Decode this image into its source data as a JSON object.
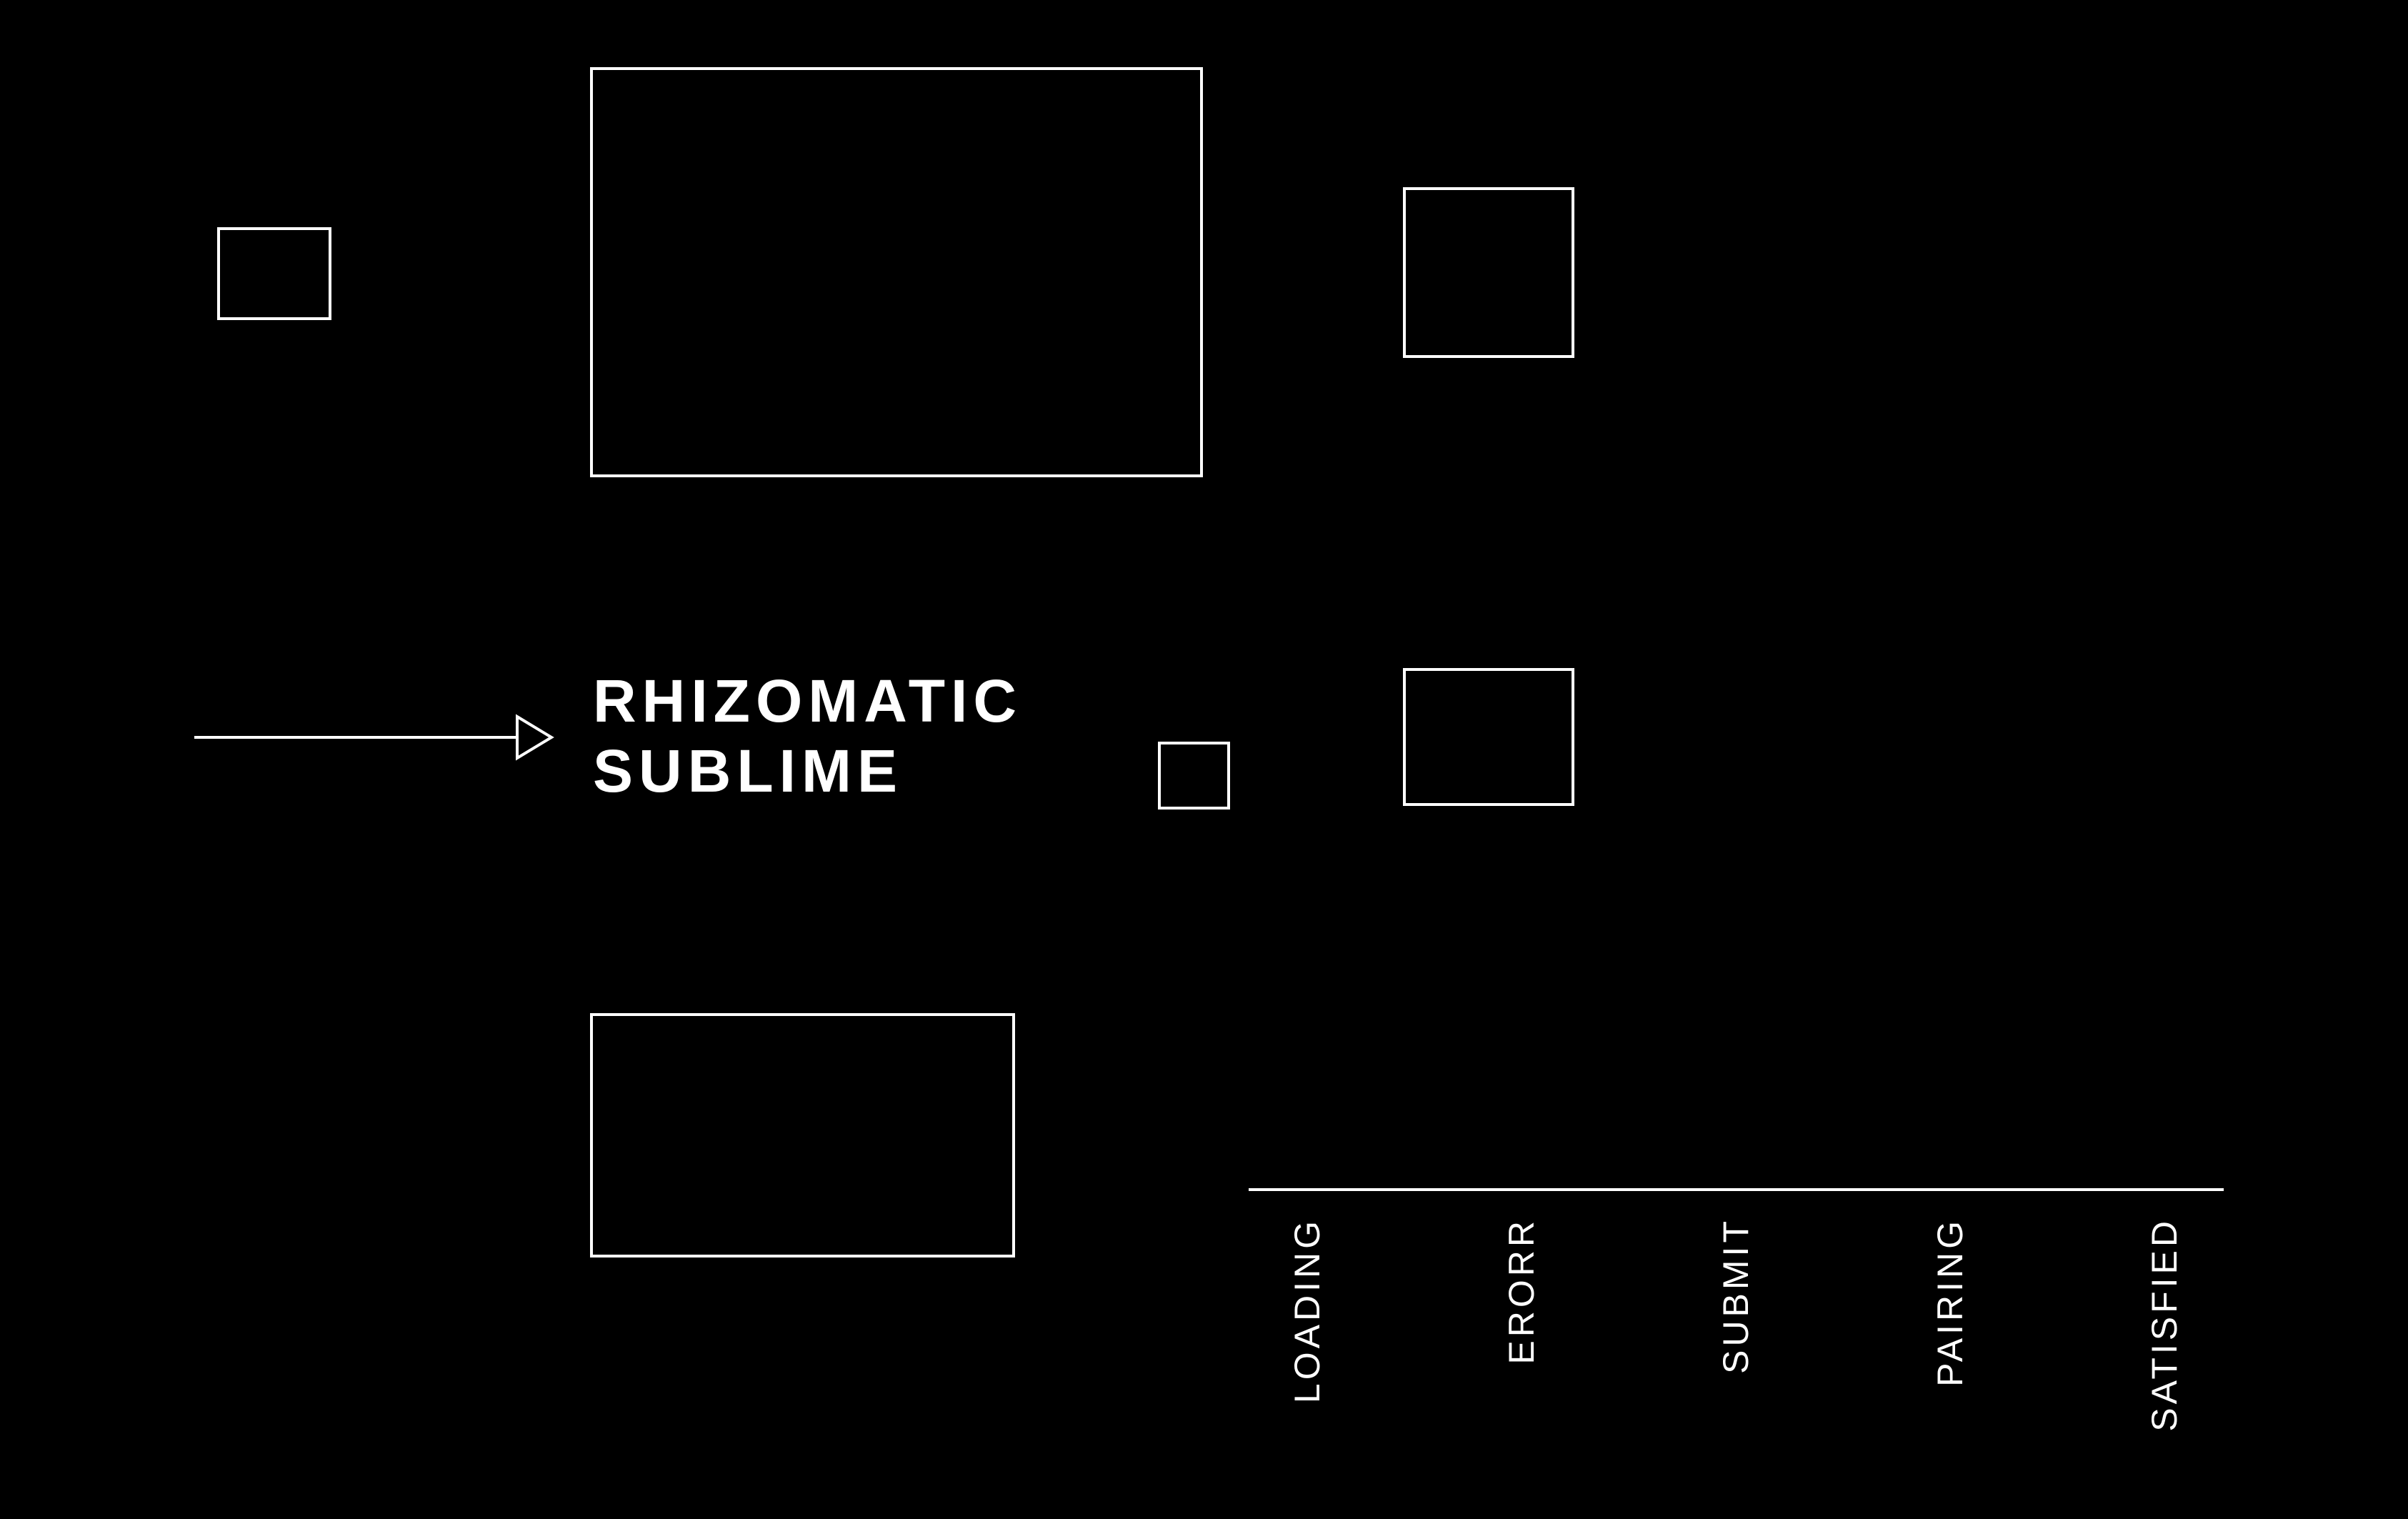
{
  "colors": {
    "background": "#000000",
    "foreground": "#ffffff"
  },
  "title": {
    "line1": "RHIZOMATIC",
    "line2": "SUBLIME"
  },
  "states": [
    "LOADING",
    "ERORR",
    "SUBMIT",
    "PAIRING",
    "SATISFIED"
  ]
}
